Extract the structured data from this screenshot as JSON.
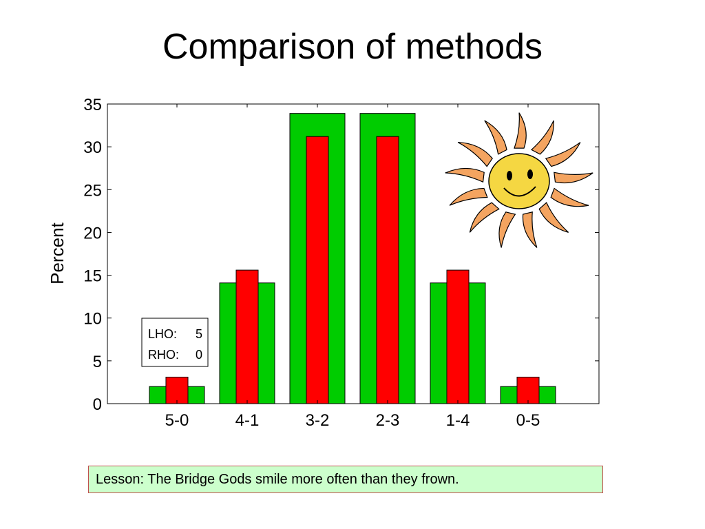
{
  "slide": {
    "title": "Comparison of methods",
    "lesson": "Lesson: The Bridge Gods smile more often than they frown."
  },
  "chart_data": {
    "type": "bar",
    "categories": [
      "5-0",
      "4-1",
      "3-2",
      "2-3",
      "1-4",
      "0-5"
    ],
    "series": [
      {
        "values": [
          2.0,
          14.1,
          33.9,
          33.9,
          14.1,
          2.0
        ],
        "color": "#00cc00"
      },
      {
        "values": [
          3.1,
          15.6,
          31.2,
          31.2,
          15.6,
          3.1
        ],
        "color": "#ff0000"
      }
    ],
    "ylabel": "Percent",
    "xlabel": "",
    "ylim": [
      0,
      35
    ],
    "yticks": [
      0,
      5,
      10,
      15,
      20,
      25,
      30,
      35
    ],
    "grid": false,
    "annotation": {
      "line1_label": "LHO:",
      "line1_value": "5",
      "line2_label": "RHO:",
      "line2_value": "0"
    }
  },
  "decoration": {
    "image": "smiling-sun",
    "sun_color": "#f5d742",
    "ray_color": "#f4a460"
  }
}
